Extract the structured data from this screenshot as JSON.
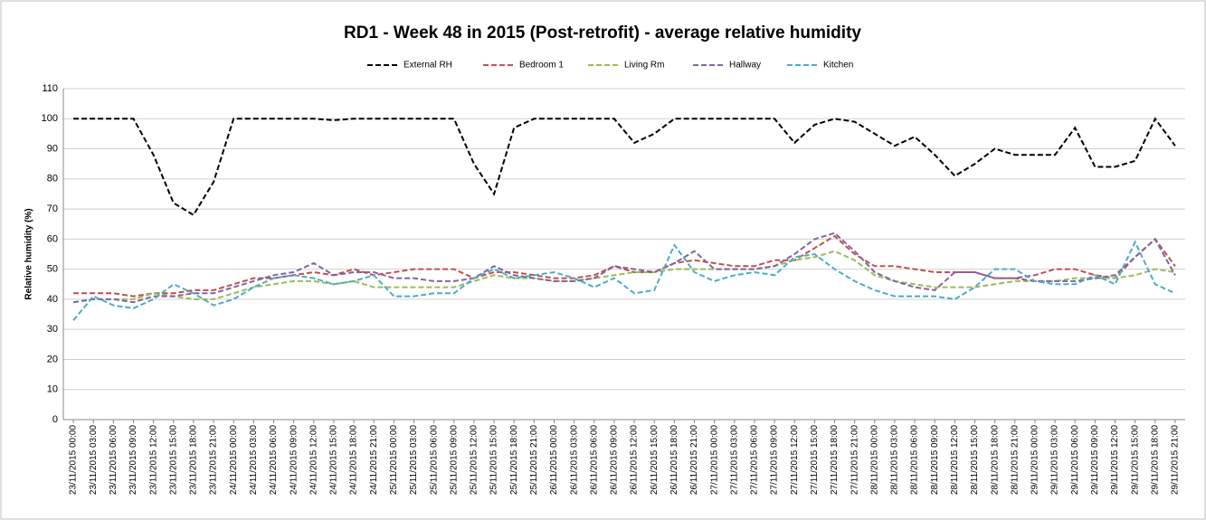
{
  "chart_data": {
    "type": "line",
    "title": "RD1 - Week 48 in 2015 (Post-retrofit) - average relative humidity",
    "y_label": "Relative humidity (%)",
    "categories": [
      "23/11/2015 00:00",
      "23/11/2015 03:00",
      "23/11/2015 06:00",
      "23/11/2015 09:00",
      "23/11/2015 12:00",
      "23/11/2015 15:00",
      "23/11/2015 18:00",
      "23/11/2015 21:00",
      "24/11/2015 00:00",
      "24/11/2015 03:00",
      "24/11/2015 06:00",
      "24/11/2015 09:00",
      "24/11/2015 12:00",
      "24/11/2015 15:00",
      "24/11/2015 18:00",
      "24/11/2015 21:00",
      "25/11/2015 00:00",
      "25/11/2015 03:00",
      "25/11/2015 06:00",
      "25/11/2015 09:00",
      "25/11/2015 12:00",
      "25/11/2015 15:00",
      "25/11/2015 18:00",
      "25/11/2015 21:00",
      "26/11/2015 00:00",
      "26/11/2015 03:00",
      "26/11/2015 06:00",
      "26/11/2015 09:00",
      "26/11/2015 12:00",
      "26/11/2015 15:00",
      "26/11/2015 18:00",
      "26/11/2015 21:00",
      "27/11/2015 00:00",
      "27/11/2015 03:00",
      "27/11/2015 06:00",
      "27/11/2015 09:00",
      "27/11/2015 12:00",
      "27/11/2015 15:00",
      "27/11/2015 18:00",
      "27/11/2015 21:00",
      "28/11/2015 00:00",
      "28/11/2015 03:00",
      "28/11/2015 06:00",
      "28/11/2015 09:00",
      "28/11/2015 12:00",
      "28/11/2015 15:00",
      "28/11/2015 18:00",
      "28/11/2015 21:00",
      "29/11/2015 00:00",
      "29/11/2015 03:00",
      "29/11/2015 06:00",
      "29/11/2015 09:00",
      "29/11/2015 12:00",
      "29/11/2015 15:00",
      "29/11/2015 18:00",
      "29/11/2015 21:00"
    ],
    "series": [
      {
        "name": "External RH",
        "color": "#000000",
        "values": [
          100,
          100,
          100,
          100,
          88,
          72,
          68,
          79,
          100,
          100,
          100,
          100,
          100,
          99.5,
          100,
          100,
          100,
          100,
          100,
          100,
          85,
          75,
          97,
          100,
          100,
          100,
          100,
          100,
          92,
          95,
          100,
          100,
          100,
          100,
          100,
          100,
          92,
          98,
          100,
          99,
          95,
          91,
          94,
          88,
          81,
          85,
          90,
          88,
          88,
          88,
          97,
          84,
          84,
          86,
          100,
          91
        ]
      },
      {
        "name": "Bedroom 1",
        "color": "#c0504d",
        "values": [
          42,
          42,
          42,
          41,
          42,
          42,
          43,
          43,
          45,
          47,
          47,
          48,
          49,
          48,
          50,
          48,
          49,
          50,
          50,
          50,
          47,
          49,
          49,
          48,
          47,
          47,
          48,
          51,
          49,
          49,
          52,
          53,
          52,
          51,
          51,
          53,
          53,
          57,
          61,
          55,
          51,
          51,
          50,
          49,
          49,
          49,
          47,
          47,
          48,
          50,
          50,
          48,
          47,
          54,
          60,
          51
        ]
      },
      {
        "name": "Living Rm",
        "color": "#9bbb59",
        "values": [
          39,
          40,
          40,
          40,
          42,
          41,
          40,
          40,
          42,
          44,
          45,
          46,
          46,
          45,
          46,
          44,
          44,
          44,
          44,
          44,
          46,
          48,
          47,
          47,
          46,
          46,
          47,
          48,
          49,
          49,
          50,
          50,
          50,
          50,
          50,
          51,
          53,
          54,
          56,
          53,
          48,
          46,
          45,
          44,
          44,
          44,
          45,
          46,
          46,
          46,
          47,
          47,
          47,
          48,
          50,
          49
        ]
      },
      {
        "name": "Hallway",
        "color": "#8064a2",
        "values": [
          39,
          40,
          40,
          39,
          41,
          41,
          42,
          42,
          44,
          46,
          48,
          49,
          52,
          48,
          49,
          49,
          47,
          47,
          46,
          46,
          47,
          51,
          48,
          47,
          46,
          46,
          47,
          51,
          50,
          49,
          52,
          56,
          50,
          50,
          50,
          51,
          55,
          60,
          62,
          56,
          49,
          46,
          44,
          43,
          49,
          49,
          47,
          47,
          46,
          46,
          46,
          47,
          48,
          54,
          60,
          48
        ]
      },
      {
        "name": "Kitchen",
        "color": "#4bacc6",
        "values": [
          33,
          41,
          38,
          37,
          40,
          45,
          42,
          38,
          40,
          44,
          47,
          48,
          47,
          45,
          46,
          48,
          41,
          41,
          42,
          42,
          47,
          50,
          47,
          48,
          49,
          47,
          44,
          47,
          42,
          43,
          58,
          49,
          46,
          48,
          49,
          48,
          54,
          55,
          50,
          46,
          43,
          41,
          41,
          41,
          40,
          44,
          50,
          50,
          46,
          45,
          45,
          48,
          45,
          59,
          45,
          42
        ]
      }
    ],
    "ylim": [
      0,
      110
    ],
    "yticks": [
      0,
      10,
      20,
      30,
      40,
      50,
      60,
      70,
      80,
      90,
      100,
      110
    ],
    "grid": true,
    "legend": "top"
  }
}
